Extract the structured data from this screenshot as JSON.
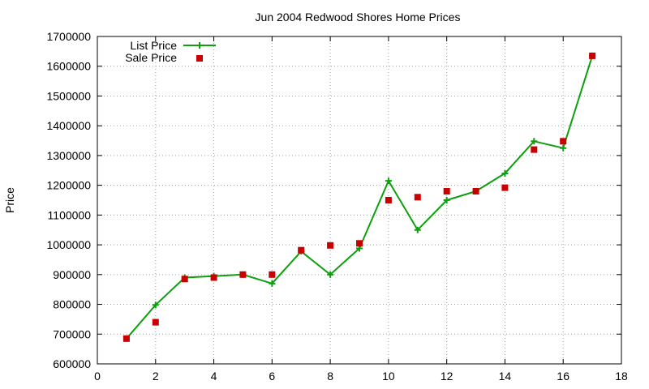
{
  "chart_data": {
    "type": "line",
    "title": "Jun 2004 Redwood Shores Home Prices",
    "xlabel": "",
    "ylabel": "Price",
    "xlim": [
      0,
      18
    ],
    "ylim": [
      600000,
      1700000
    ],
    "xticks": [
      "0",
      "2",
      "4",
      "6",
      "8",
      "10",
      "12",
      "14",
      "16",
      "18"
    ],
    "yticks": [
      "600000",
      "700000",
      "800000",
      "900000",
      "1000000",
      "1100000",
      "1200000",
      "1300000",
      "1400000",
      "1500000",
      "1600000",
      "1700000"
    ],
    "grid": true,
    "legend_position": "top-left",
    "series": [
      {
        "name": "List Price",
        "style": "line-with-plus-markers",
        "color": "#0ca00c",
        "x": [
          1,
          2,
          3,
          4,
          5,
          6,
          7,
          8,
          9,
          10,
          11,
          12,
          13,
          14,
          15,
          16,
          17
        ],
        "values": [
          685000,
          798000,
          890000,
          895000,
          900000,
          870000,
          978000,
          900000,
          988000,
          1215000,
          1050000,
          1150000,
          1180000,
          1240000,
          1348000,
          1325000,
          1635000
        ]
      },
      {
        "name": "Sale Price",
        "style": "square-markers",
        "color": "#c80000",
        "x": [
          1,
          2,
          3,
          4,
          5,
          6,
          7,
          8,
          9,
          10,
          11,
          12,
          13,
          14,
          15,
          16,
          17
        ],
        "values": [
          685000,
          740000,
          885000,
          890000,
          900000,
          900000,
          982000,
          998000,
          1005000,
          1150000,
          1160000,
          1180000,
          1180000,
          1192000,
          1320000,
          1348000,
          1635000
        ]
      }
    ]
  }
}
